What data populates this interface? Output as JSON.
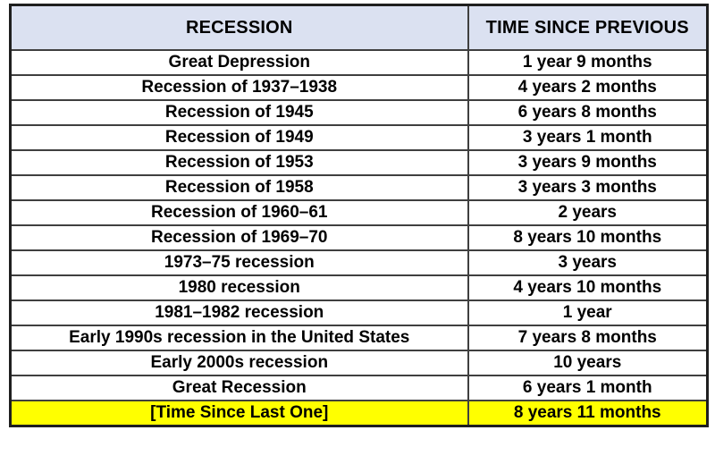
{
  "chart_data": {
    "type": "table",
    "title": "",
    "columns": [
      "RECESSION",
      "TIME SINCE PREVIOUS"
    ],
    "rows": [
      [
        "Great Depression",
        "1 year 9 months"
      ],
      [
        "Recession of 1937–1938",
        "4 years 2 months"
      ],
      [
        "Recession of 1945",
        "6 years 8 months"
      ],
      [
        "Recession of 1949",
        "3 years 1 month"
      ],
      [
        "Recession of 1953",
        "3 years 9 months"
      ],
      [
        "Recession of 1958",
        "3 years 3 months"
      ],
      [
        "Recession of 1960–61",
        "2 years"
      ],
      [
        "Recession of 1969–70",
        "8 years 10 months"
      ],
      [
        "1973–75 recession",
        "3 years"
      ],
      [
        "1980 recession",
        "4 years 10 months"
      ],
      [
        "1981–1982 recession",
        "1 year"
      ],
      [
        "Early 1990s recession in the United States",
        "7 years 8 months"
      ],
      [
        "Early 2000s recession",
        "10 years"
      ],
      [
        "Great Recession",
        "6 years 1 month"
      ],
      [
        "[Time Since Last One]",
        "8 years 11 months"
      ]
    ],
    "highlighted_row_index": 14,
    "layout": {
      "header_style": "bold-centered",
      "body_style": "bold-centered",
      "grid": "on"
    }
  },
  "colors": {
    "header_bg": "#dbe1f1",
    "highlight_bg": "#ffff00",
    "border": "#3f3f3f",
    "outer_border": "#1f1f1f",
    "text": "#000000",
    "row_bg": "#ffffff",
    "page_bg": "#ffffff"
  }
}
